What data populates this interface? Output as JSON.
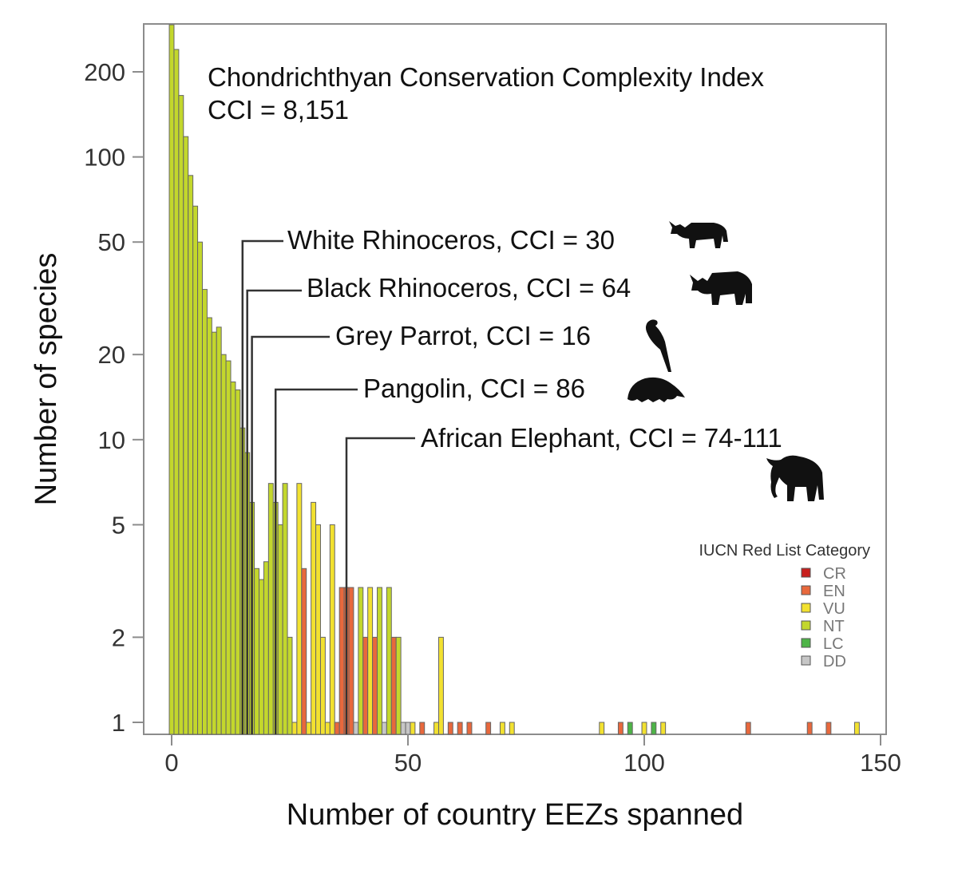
{
  "chart_data": {
    "type": "bar",
    "subtype": "histogram",
    "title": "Chondrichthyan Conservation Complexity Index",
    "subtitle": "CCI = 8,151",
    "xlabel": "Number of country EEZs spanned",
    "ylabel": "Number of species",
    "yscale": "log",
    "xlim": [
      -6,
      151
    ],
    "ylim": [
      0.85,
      300
    ],
    "x_ticks": [
      0,
      50,
      100,
      150
    ],
    "y_ticks": [
      1,
      2,
      5,
      10,
      20,
      50,
      100,
      200
    ],
    "grid": false,
    "bin_width": 1,
    "colors": {
      "CR": "#c8201e",
      "EN": "#e8683c",
      "VU": "#f2e130",
      "NT": "#c3d72c",
      "LC": "#4db447",
      "DD": "#c6c6c6",
      "axis": "#8c8c8c",
      "text": "#333333",
      "bar_stroke": "#666666"
    },
    "bars": [
      {
        "x": 0,
        "count": 300,
        "category": "NT"
      },
      {
        "x": 1,
        "count": 240,
        "category": "NT"
      },
      {
        "x": 2,
        "count": 165,
        "category": "NT"
      },
      {
        "x": 3,
        "count": 118,
        "category": "NT"
      },
      {
        "x": 4,
        "count": 86,
        "category": "NT"
      },
      {
        "x": 5,
        "count": 67,
        "category": "NT"
      },
      {
        "x": 6,
        "count": 50,
        "category": "NT"
      },
      {
        "x": 7,
        "count": 34,
        "category": "NT"
      },
      {
        "x": 8,
        "count": 27,
        "category": "NT"
      },
      {
        "x": 9,
        "count": 24,
        "category": "NT"
      },
      {
        "x": 10,
        "count": 25,
        "category": "NT"
      },
      {
        "x": 11,
        "count": 20,
        "category": "NT"
      },
      {
        "x": 12,
        "count": 19,
        "category": "NT"
      },
      {
        "x": 13,
        "count": 16,
        "category": "NT"
      },
      {
        "x": 14,
        "count": 15,
        "category": "NT"
      },
      {
        "x": 15,
        "count": 11,
        "category": "NT"
      },
      {
        "x": 16,
        "count": 9,
        "category": "NT"
      },
      {
        "x": 17,
        "count": 6,
        "category": "NT"
      },
      {
        "x": 18,
        "count": 3.5,
        "category": "NT"
      },
      {
        "x": 19,
        "count": 3.2,
        "category": "NT"
      },
      {
        "x": 20,
        "count": 3.7,
        "category": "NT"
      },
      {
        "x": 21,
        "count": 7,
        "category": "NT"
      },
      {
        "x": 22,
        "count": 6,
        "category": "NT"
      },
      {
        "x": 23,
        "count": 5,
        "category": "NT"
      },
      {
        "x": 24,
        "count": 7,
        "category": "NT"
      },
      {
        "x": 25,
        "count": 2,
        "category": "NT"
      },
      {
        "x": 26,
        "count": 1,
        "category": "VU"
      },
      {
        "x": 27,
        "count": 7,
        "category": "VU"
      },
      {
        "x": 28,
        "count": 3.5,
        "category": "EN"
      },
      {
        "x": 29,
        "count": 1,
        "category": "VU"
      },
      {
        "x": 30,
        "count": 6,
        "category": "VU"
      },
      {
        "x": 31,
        "count": 5,
        "category": "VU"
      },
      {
        "x": 32,
        "count": 2,
        "category": "VU"
      },
      {
        "x": 33,
        "count": 1,
        "category": "VU"
      },
      {
        "x": 34,
        "count": 5,
        "category": "VU"
      },
      {
        "x": 35,
        "count": 1,
        "category": "EN"
      },
      {
        "x": 36,
        "count": 3,
        "category": "EN"
      },
      {
        "x": 37,
        "count": 3,
        "category": "EN"
      },
      {
        "x": 38,
        "count": 3,
        "category": "EN"
      },
      {
        "x": 39,
        "count": 1,
        "category": "DD"
      },
      {
        "x": 40,
        "count": 3,
        "category": "NT"
      },
      {
        "x": 41,
        "count": 2,
        "category": "EN"
      },
      {
        "x": 42,
        "count": 3,
        "category": "VU"
      },
      {
        "x": 43,
        "count": 2,
        "category": "EN"
      },
      {
        "x": 44,
        "count": 3,
        "category": "NT"
      },
      {
        "x": 45,
        "count": 1,
        "category": "DD"
      },
      {
        "x": 46,
        "count": 3,
        "category": "NT"
      },
      {
        "x": 47,
        "count": 2,
        "category": "EN"
      },
      {
        "x": 48,
        "count": 2,
        "category": "NT"
      },
      {
        "x": 49,
        "count": 1,
        "category": "DD"
      },
      {
        "x": 50,
        "count": 1,
        "category": "DD"
      },
      {
        "x": 51,
        "count": 1,
        "category": "VU"
      },
      {
        "x": 53,
        "count": 1,
        "category": "EN"
      },
      {
        "x": 56,
        "count": 1,
        "category": "VU"
      },
      {
        "x": 57,
        "count": 2,
        "category": "VU"
      },
      {
        "x": 59,
        "count": 1,
        "category": "EN"
      },
      {
        "x": 61,
        "count": 1,
        "category": "EN"
      },
      {
        "x": 63,
        "count": 1,
        "category": "EN"
      },
      {
        "x": 67,
        "count": 1,
        "category": "EN"
      },
      {
        "x": 70,
        "count": 1,
        "category": "VU"
      },
      {
        "x": 72,
        "count": 1,
        "category": "VU"
      },
      {
        "x": 91,
        "count": 1,
        "category": "VU"
      },
      {
        "x": 95,
        "count": 1,
        "category": "EN"
      },
      {
        "x": 97,
        "count": 1,
        "category": "LC"
      },
      {
        "x": 100,
        "count": 1,
        "category": "VU"
      },
      {
        "x": 102,
        "count": 1,
        "category": "LC"
      },
      {
        "x": 104,
        "count": 1,
        "category": "VU"
      },
      {
        "x": 122,
        "count": 1,
        "category": "EN"
      },
      {
        "x": 135,
        "count": 1,
        "category": "EN"
      },
      {
        "x": 139,
        "count": 1,
        "category": "EN"
      },
      {
        "x": 145,
        "count": 1,
        "category": "VU"
      }
    ],
    "annotations": [
      {
        "label": "White Rhinoceros, CCI = 30",
        "x": 15,
        "icon": "rhinoceros-icon"
      },
      {
        "label": "Black Rhinoceros, CCI = 64",
        "x": 16,
        "icon": "rhinoceros-icon"
      },
      {
        "label": "Grey Parrot, CCI = 16",
        "x": 17,
        "icon": "parrot-icon"
      },
      {
        "label": "Pangolin, CCI = 86",
        "x": 22,
        "icon": "pangolin-icon"
      },
      {
        "label": "African Elephant, CCI = 74-111",
        "x": 37,
        "icon": "elephant-icon"
      }
    ],
    "legend": {
      "title": "IUCN Red List Category",
      "placement": "right",
      "entries": [
        "CR",
        "EN",
        "VU",
        "NT",
        "LC",
        "DD"
      ]
    }
  }
}
